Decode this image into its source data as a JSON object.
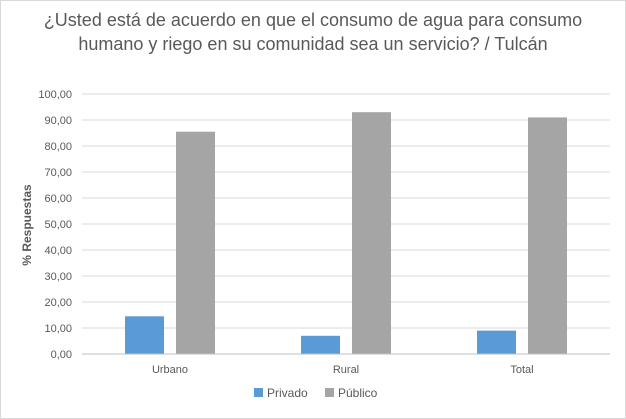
{
  "chart_data": {
    "type": "bar",
    "title": "¿Usted está de acuerdo en que el consumo de agua para consumo humano y riego en su comunidad sea un servicio? / Tulcán",
    "xlabel": "",
    "ylabel": "% Respuestas",
    "categories": [
      "Urbano",
      "Rural",
      "Total"
    ],
    "series": [
      {
        "name": "Privado",
        "values": [
          14.5,
          7.0,
          9.0
        ],
        "color": "#5b9bd5"
      },
      {
        "name": "Público",
        "values": [
          85.5,
          93.0,
          91.0
        ],
        "color": "#a5a5a5"
      }
    ],
    "ylim": [
      0,
      100
    ],
    "ytick_step": 10,
    "ytick_labels": [
      "0,00",
      "10,00",
      "20,00",
      "30,00",
      "40,00",
      "50,00",
      "60,00",
      "70,00",
      "80,00",
      "90,00",
      "100,00"
    ],
    "grid": true,
    "legend": "bottom-center",
    "colors": {
      "gridline": "#d9d9d9",
      "axis": "#bfbfbf",
      "text": "#595959"
    }
  }
}
